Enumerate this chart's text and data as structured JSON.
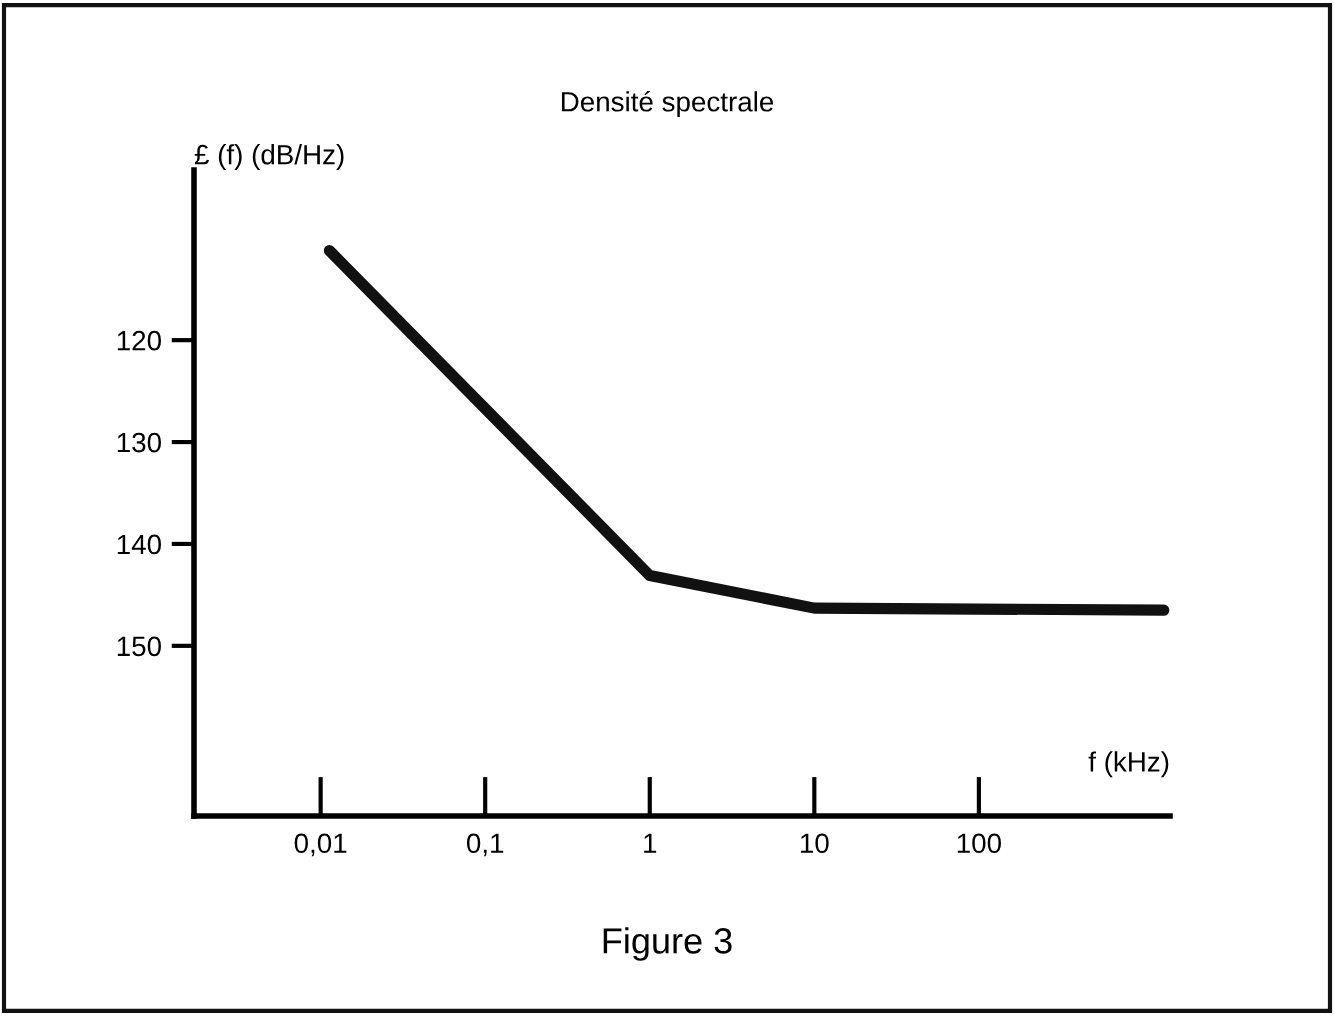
{
  "chart_data": {
    "type": "line",
    "title": "Densité spectrale",
    "xlabel": "f (kHz)",
    "ylabel": "£ (f) (dB/Hz)",
    "annotations": [
      "Figure 3"
    ],
    "log": "x",
    "x": [
      0.0113,
      1,
      10,
      1330
    ],
    "series": [
      {
        "color": "#111111",
        "values": [
          111.2,
          143.1,
          146.3,
          146.5
        ]
      }
    ],
    "xlim": [
      0.0017,
      1450
    ],
    "xticks": [
      {
        "value": 0.01,
        "label": "0,01"
      },
      {
        "value": 0.1,
        "label": "0,1"
      },
      1,
      10,
      100
    ],
    "ylim": [
      166.7,
      103.3
    ],
    "yticks": [
      120,
      130,
      140,
      150
    ],
    "grid": false,
    "legend": false,
    "marker": "none",
    "line_style": "solid"
  }
}
